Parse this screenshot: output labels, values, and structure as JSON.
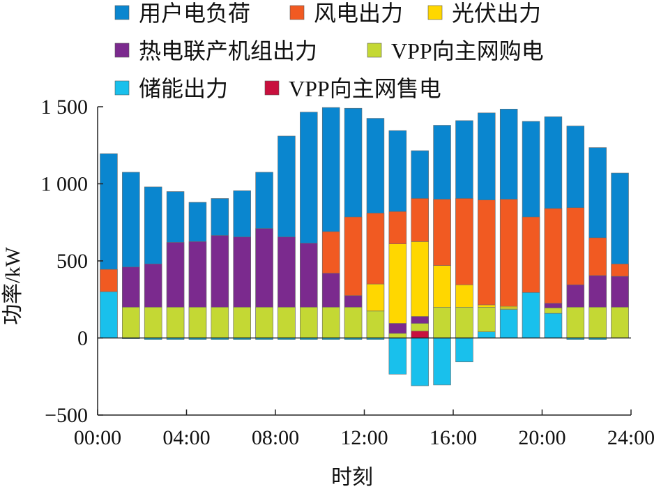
{
  "chart_data": {
    "type": "bar",
    "stacked": true,
    "xlabel": "时刻",
    "ylabel": "功率/kW",
    "ylim": [
      -500,
      1500
    ],
    "yticks": [
      {
        "value": -500,
        "label": "−500"
      },
      {
        "value": 0,
        "label": "0"
      },
      {
        "value": 500,
        "label": "500"
      },
      {
        "value": 1000,
        "label": "1 000"
      },
      {
        "value": 1500,
        "label": "1 500"
      }
    ],
    "xlim": [
      0,
      24
    ],
    "xticks": [
      {
        "value": 0,
        "label": "00:00"
      },
      {
        "value": 4,
        "label": "04:00"
      },
      {
        "value": 8,
        "label": "08:00"
      },
      {
        "value": 12,
        "label": "12:00"
      },
      {
        "value": 16,
        "label": "16:00"
      },
      {
        "value": 20,
        "label": "20:00"
      },
      {
        "value": 24,
        "label": "24:00"
      }
    ],
    "grid": false,
    "legend_position": "top",
    "hours": [
      1,
      2,
      3,
      4,
      5,
      6,
      7,
      8,
      9,
      10,
      11,
      12,
      13,
      14,
      15,
      16,
      17,
      18,
      19,
      20,
      21,
      22,
      23,
      24
    ],
    "series": [
      {
        "name": "用户电负荷",
        "color": "#0a86cf",
        "kind": "total",
        "values": [
          1195,
          1075,
          980,
          950,
          880,
          905,
          955,
          1075,
          1310,
          1465,
          1495,
          1490,
          1425,
          1345,
          1215,
          1380,
          1410,
          1460,
          1485,
          1405,
          1435,
          1375,
          1235,
          1070
        ]
      },
      {
        "name": "风电出力",
        "color": "#f15a22",
        "kind": "stack",
        "values": [
          145,
          0,
          0,
          0,
          0,
          0,
          0,
          0,
          0,
          0,
          270,
          510,
          460,
          210,
          280,
          430,
          560,
          680,
          695,
          490,
          615,
          500,
          245,
          80
        ]
      },
      {
        "name": "光伏出力",
        "color": "#ffd700",
        "kind": "stack",
        "values": [
          0,
          0,
          0,
          0,
          0,
          0,
          0,
          0,
          0,
          0,
          0,
          0,
          175,
          515,
          485,
          270,
          145,
          15,
          10,
          0,
          0,
          0,
          0,
          0
        ]
      },
      {
        "name": "热电联产机组出力",
        "color": "#7b2a8e",
        "kind": "stack",
        "values": [
          0,
          260,
          280,
          420,
          425,
          465,
          455,
          510,
          455,
          415,
          220,
          75,
          0,
          65,
          45,
          0,
          0,
          0,
          0,
          0,
          30,
          145,
          205,
          200
        ]
      },
      {
        "name": "VPP向主网购电",
        "color": "#c4d834",
        "kind": "stack",
        "values": [
          0,
          200,
          200,
          200,
          200,
          200,
          200,
          200,
          200,
          200,
          200,
          200,
          175,
          30,
          50,
          200,
          200,
          160,
          10,
          0,
          35,
          200,
          200,
          200
        ]
      },
      {
        "name": "储能出力",
        "color": "#19c0ec",
        "kind": "stack",
        "values": [
          300,
          -5,
          -10,
          -10,
          -10,
          -10,
          -10,
          -10,
          -10,
          -10,
          -10,
          -10,
          -10,
          -235,
          -310,
          -305,
          -155,
          40,
          185,
          295,
          160,
          -10,
          -10,
          0
        ]
      },
      {
        "name": "VPP向主网售电",
        "color": "#c8103e",
        "kind": "stack",
        "values": [
          0,
          0,
          0,
          0,
          0,
          0,
          0,
          0,
          0,
          0,
          0,
          0,
          0,
          0,
          45,
          0,
          0,
          0,
          0,
          0,
          0,
          0,
          0,
          0
        ]
      }
    ]
  }
}
